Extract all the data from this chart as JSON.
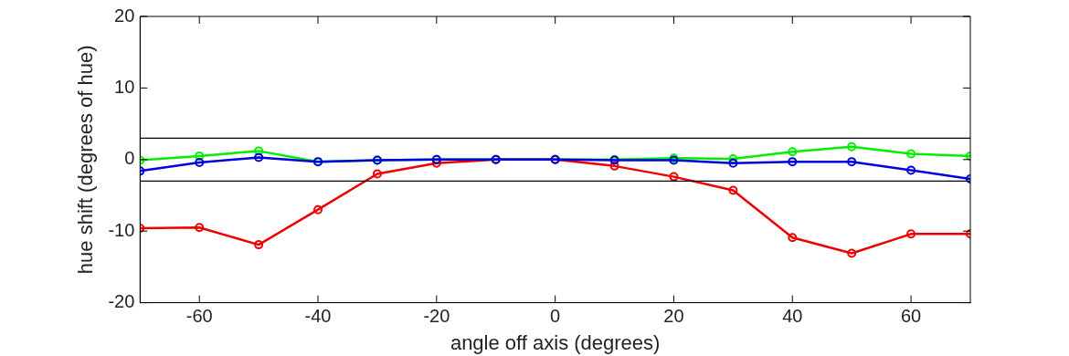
{
  "chart_data": {
    "type": "line",
    "xlabel": "angle off axis (degrees)",
    "ylabel": "hue shift (degrees of hue)",
    "x": [
      -70,
      -60,
      -50,
      -40,
      -30,
      -20,
      -10,
      0,
      10,
      20,
      30,
      40,
      50,
      60,
      70
    ],
    "series": [
      {
        "color": "#00ee00",
        "values": [
          -0.1,
          0.5,
          1.2,
          -0.3,
          -0.1,
          0,
          0,
          0,
          0,
          0.2,
          0.1,
          1.1,
          1.8,
          0.8,
          0.5
        ]
      },
      {
        "color": "#ee0000",
        "values": [
          -9.6,
          -9.5,
          -11.9,
          -7.0,
          -2.0,
          -0.5,
          0,
          0,
          -0.9,
          -2.4,
          -4.3,
          -10.9,
          -13.1,
          -10.4,
          -10.4
        ]
      },
      {
        "color": "#0000dd",
        "values": [
          -1.6,
          -0.4,
          0.3,
          -0.3,
          -0.1,
          0,
          0,
          0,
          -0.1,
          -0.1,
          -0.5,
          -0.3,
          -0.3,
          -1.5,
          -2.7
        ]
      }
    ],
    "xlim": [
      -70,
      70
    ],
    "xticks": [
      -60,
      -40,
      -20,
      0,
      20,
      40,
      60
    ],
    "ylim": [
      -20,
      20
    ],
    "yticks": [
      -20,
      -10,
      0,
      10,
      20
    ],
    "ref_lines": [
      {
        "axis": "y",
        "value": 3,
        "color": "#000000"
      },
      {
        "axis": "y",
        "value": -3,
        "color": "#000000"
      }
    ],
    "grid": false,
    "legend": false,
    "marker": "circle",
    "line_style": "solid"
  }
}
